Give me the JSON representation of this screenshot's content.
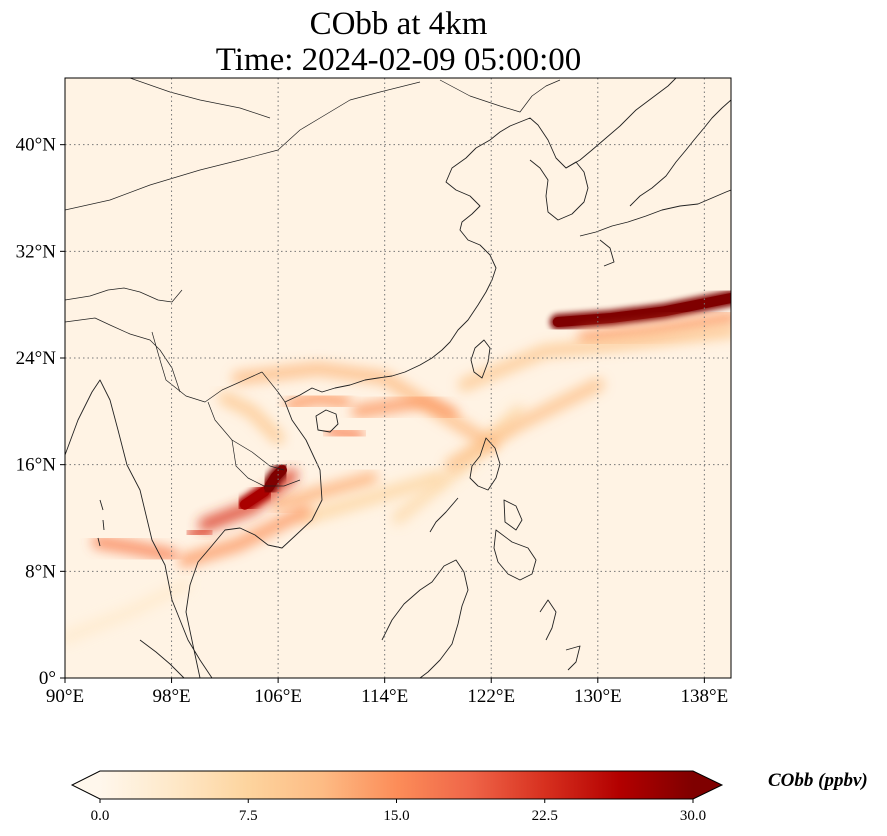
{
  "title": {
    "line1": "CObb at 4km",
    "line2": "Time: 2024-02-09 05:00:00"
  },
  "map": {
    "projection": "PlateCarree",
    "lon_range": [
      90,
      140
    ],
    "lat_range": [
      0,
      45
    ],
    "gridlines": true,
    "gridline_style": "dotted",
    "background_color": "#fff3e4",
    "lon_ticks": [
      {
        "value": 90,
        "label": "90°E"
      },
      {
        "value": 98,
        "label": "98°E"
      },
      {
        "value": 106,
        "label": "106°E"
      },
      {
        "value": 114,
        "label": "114°E"
      },
      {
        "value": 122,
        "label": "122°E"
      },
      {
        "value": 130,
        "label": "130°E"
      },
      {
        "value": 138,
        "label": "138°E"
      }
    ],
    "lat_ticks": [
      {
        "value": 0,
        "label": "0°"
      },
      {
        "value": 8,
        "label": "8°N"
      },
      {
        "value": 16,
        "label": "16°N"
      },
      {
        "value": 24,
        "label": "24°N"
      },
      {
        "value": 32,
        "label": "32°N"
      },
      {
        "value": 40,
        "label": "40°N"
      }
    ],
    "plumes": [
      {
        "lon": [
          127,
          131,
          135,
          140
        ],
        "lat": [
          26.7,
          27,
          27.5,
          28.5
        ],
        "value": 30
      },
      {
        "lon": [
          129,
          134,
          140
        ],
        "lat": [
          25.5,
          26,
          27
        ],
        "value": 14
      },
      {
        "lon": [
          120,
          126,
          131,
          140
        ],
        "lat": [
          22,
          24.5,
          25,
          26
        ],
        "value": 9
      },
      {
        "lon": [
          115,
          120,
          124
        ],
        "lat": [
          12,
          16,
          20
        ],
        "value": 6
      },
      {
        "lon": [
          119,
          124,
          130
        ],
        "lat": [
          16,
          19,
          22
        ],
        "value": 10
      },
      {
        "lon": [
          103,
          109,
          114,
          118,
          122
        ],
        "lat": [
          22.5,
          23.2,
          22.5,
          20,
          17.5
        ],
        "value": 11
      },
      {
        "lon": [
          112,
          117,
          119
        ],
        "lat": [
          20,
          20.8,
          19.8
        ],
        "value": 14
      },
      {
        "lon": [
          107,
          109,
          111
        ],
        "lat": [
          20.5,
          21,
          20.7
        ],
        "value": 14
      },
      {
        "lon": [
          110,
          112
        ],
        "lat": [
          18.5,
          18.2
        ],
        "value": 16
      },
      {
        "lon": [
          106,
          109.5,
          113
        ],
        "lat": [
          13,
          14,
          15
        ],
        "value": 12
      },
      {
        "lon": [
          108,
          113,
          118
        ],
        "lat": [
          12,
          13.5,
          15
        ],
        "value": 7
      },
      {
        "lon": [
          99,
          103,
          108
        ],
        "lat": [
          8.8,
          10,
          12.5
        ],
        "value": 14
      },
      {
        "lon": [
          92.5,
          95,
          98
        ],
        "lat": [
          10.2,
          9.8,
          9.2
        ],
        "value": 16
      },
      {
        "lon": [
          100.5,
          104,
          107
        ],
        "lat": [
          11.5,
          12.8,
          15.2
        ],
        "value": 22
      },
      {
        "lon": [
          103.5,
          105
        ],
        "lat": [
          13,
          14
        ],
        "value": 27
      },
      {
        "lon": [
          105.3,
          105.8,
          106.3
        ],
        "lat": [
          14.3,
          15.1,
          15.6
        ],
        "value": 30
      },
      {
        "lon": [
          99.5,
          100.7
        ],
        "lat": [
          10.8,
          11
        ],
        "value": 22
      },
      {
        "lon": [
          102,
          104,
          106
        ],
        "lat": [
          21,
          20,
          18
        ],
        "value": 9
      },
      {
        "lon": [
          90,
          95,
          99
        ],
        "lat": [
          3,
          5,
          7
        ],
        "value": 3
      }
    ]
  },
  "colorbar": {
    "label": "CObb (ppbv)",
    "min": 0,
    "max": 30,
    "extend": "both",
    "colormap": "OrRd",
    "colors": [
      "#fff7ec",
      "#fee8c8",
      "#fdd49e",
      "#fdbb84",
      "#fc8d59",
      "#ef6548",
      "#d7301f",
      "#b30000",
      "#7f0000"
    ],
    "ticks": [
      {
        "value": 0,
        "label": "0.0"
      },
      {
        "value": 7.5,
        "label": "7.5"
      },
      {
        "value": 15,
        "label": "15.0"
      },
      {
        "value": 22.5,
        "label": "22.5"
      },
      {
        "value": 30,
        "label": "30.0"
      }
    ]
  }
}
